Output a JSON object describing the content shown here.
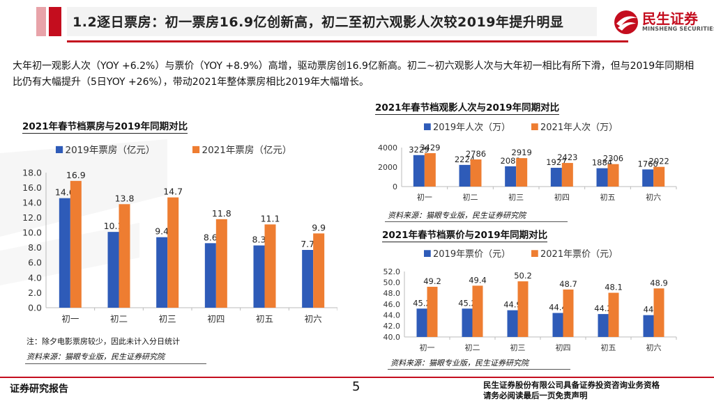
{
  "header": {
    "title": "1.2逐日票房：初一票房16.9亿创新高，初二至初六观影人次较2019年提升明显",
    "brand_name": "民生证券",
    "brand_en": "MINSHENG SECURITIES",
    "accent_color": "#c40d1e"
  },
  "body": {
    "paragraph": "大年初一观影人次（YOY +6.2%）与票价（YOY +8.9%）高增，驱动票房创16.9亿新高。初二~初六观影人次与大年初一相比有所下滑，但与2019年同期相比仍有大幅提升（5日YOY +26%），带动2021年整体票房相比2019年大幅增长。"
  },
  "left_chart": {
    "heading": "2021年春节档票房与2019年同期对比",
    "note": "注：除夕电影票房较少，因此未计入分日统计",
    "source": "资料来源：猫眼专业版，民生证券研究院"
  },
  "top_right_chart": {
    "heading": "2021年春节档观影人次与2019年同期对比",
    "source": "资料来源：猫眼专业版，民生证券研究院"
  },
  "bottom_right_chart": {
    "heading": "2021年春节档票价与2019年同期对比",
    "source": "资料来源：猫眼专业版，民生证券研究院"
  },
  "chart_data": [
    {
      "type": "bar",
      "title": "2021年春节档票房与2019年同期对比",
      "categories": [
        "初一",
        "初二",
        "初三",
        "初四",
        "初五",
        "初六"
      ],
      "series": [
        {
          "name": "2019年票房（亿元）",
          "color": "#2e5bb8",
          "values": [
            14.6,
            10.1,
            9.4,
            8.6,
            8.3,
            7.7
          ]
        },
        {
          "name": "2021年票房（亿元）",
          "color": "#ee7d31",
          "values": [
            16.9,
            13.8,
            14.7,
            11.8,
            11.1,
            9.9
          ]
        }
      ],
      "ylim": [
        0,
        18
      ],
      "yticks": [
        "0.0",
        "2.0",
        "4.0",
        "6.0",
        "8.0",
        "10.0",
        "12.0",
        "14.0",
        "16.0",
        "18.0"
      ],
      "xlabel": "",
      "ylabel": ""
    },
    {
      "type": "bar",
      "title": "2021年春节档观影人次与2019年同期对比",
      "categories": [
        "初一",
        "初二",
        "初三",
        "初四",
        "初五",
        "初六"
      ],
      "series": [
        {
          "name": "2019年人次（万）",
          "color": "#2e5bb8",
          "values": [
            3229,
            2224,
            2083,
            1927,
            1884,
            1760
          ]
        },
        {
          "name": "2021年人次（万）",
          "color": "#ee7d31",
          "values": [
            3429,
            2786,
            2919,
            2423,
            2306,
            2022
          ]
        }
      ],
      "ylim": [
        0,
        4000
      ],
      "yticks": [
        "0",
        "2000",
        "4000"
      ],
      "xlabel": "",
      "ylabel": ""
    },
    {
      "type": "bar",
      "title": "2021年春节档票价与2019年同期对比",
      "categories": [
        "初一",
        "初二",
        "初三",
        "初四",
        "初五",
        "初六"
      ],
      "series": [
        {
          "name": "2019年票价（元）",
          "color": "#2e5bb8",
          "values": [
            45.2,
            45.2,
            44.9,
            44.4,
            44.2,
            44.0
          ]
        },
        {
          "name": "2021年票价（元）",
          "color": "#ee7d31",
          "values": [
            49.2,
            49.4,
            50.2,
            48.7,
            48.1,
            48.9
          ]
        }
      ],
      "ylim": [
        40,
        52
      ],
      "yticks": [
        "40.0",
        "42.0",
        "44.0",
        "46.0",
        "48.0",
        "50.0",
        "52.0"
      ],
      "xlabel": "",
      "ylabel": ""
    }
  ],
  "footer": {
    "left": "证券研究报告",
    "page": "5",
    "right_line1": "民生证券股份有限公司具备证券投资咨询业务资格",
    "right_line2": "请务必阅读最后一页免责声明"
  }
}
